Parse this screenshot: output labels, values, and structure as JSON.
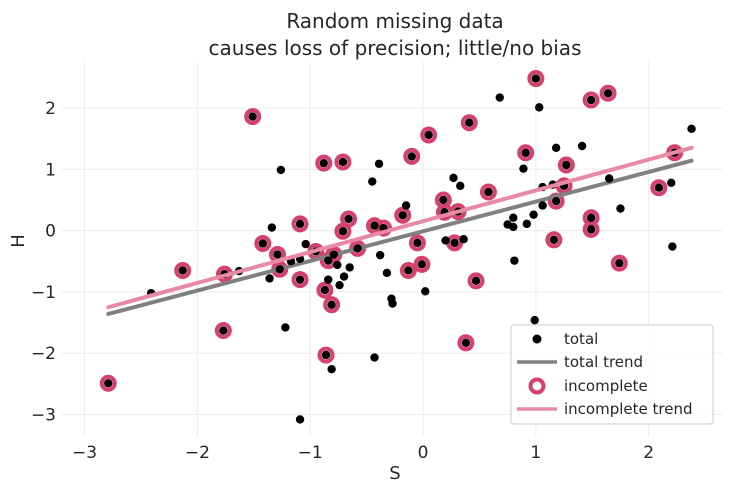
{
  "chart_data": {
    "type": "scatter",
    "title_line1": "Random missing data",
    "title_line2": "causes loss of precision; little/no bias",
    "xlabel": "S",
    "ylabel": "H",
    "xlim": [
      -3.2,
      2.65
    ],
    "ylim": [
      -3.35,
      2.75
    ],
    "xticks": [
      -3,
      -2,
      -1,
      0,
      1,
      2
    ],
    "yticks": [
      -3,
      -2,
      -1,
      0,
      1,
      2
    ],
    "xtick_labels": [
      "−3",
      "−2",
      "−1",
      "0",
      "1",
      "2"
    ],
    "ytick_labels": [
      "−3",
      "−2",
      "−1",
      "0",
      "1",
      "2"
    ],
    "grid": true,
    "legend_position": "bottom-right",
    "colors": {
      "total": "#000000",
      "total_trend": "#808080",
      "incomplete": "#d6406c",
      "incomplete_trend": "#e88aa5"
    },
    "series": [
      {
        "name": "total",
        "kind": "points",
        "points": [
          [
            -2.79,
            -2.49
          ],
          [
            -2.41,
            -1.02
          ],
          [
            -2.13,
            -0.65
          ],
          [
            -1.76,
            -0.71
          ],
          [
            -1.63,
            -0.66
          ],
          [
            -1.77,
            -1.63
          ],
          [
            -1.51,
            1.86
          ],
          [
            -1.42,
            -0.21
          ],
          [
            -1.36,
            -0.78
          ],
          [
            -1.34,
            0.05
          ],
          [
            -1.29,
            -0.39
          ],
          [
            -1.27,
            -0.63
          ],
          [
            -1.26,
            0.99
          ],
          [
            -1.22,
            -1.58
          ],
          [
            -1.17,
            -0.5
          ],
          [
            -1.09,
            -0.46
          ],
          [
            -1.09,
            0.11
          ],
          [
            -1.09,
            -0.8
          ],
          [
            -1.09,
            -3.08
          ],
          [
            -1.04,
            -0.22
          ],
          [
            -0.95,
            -0.34
          ],
          [
            -0.88,
            1.1
          ],
          [
            -0.87,
            -0.97
          ],
          [
            -0.86,
            -2.03
          ],
          [
            -0.84,
            -0.49
          ],
          [
            -0.84,
            -0.8
          ],
          [
            -0.81,
            -1.21
          ],
          [
            -0.81,
            -2.26
          ],
          [
            -0.79,
            -0.39
          ],
          [
            -0.76,
            -0.56
          ],
          [
            -0.74,
            -0.89
          ],
          [
            -0.71,
            1.12
          ],
          [
            -0.71,
            -0.01
          ],
          [
            -0.7,
            -0.75
          ],
          [
            -0.66,
            0.19
          ],
          [
            -0.65,
            -0.6
          ],
          [
            -0.58,
            -0.29
          ],
          [
            -0.45,
            0.8
          ],
          [
            -0.43,
            0.08
          ],
          [
            -0.43,
            -2.07
          ],
          [
            -0.39,
            1.09
          ],
          [
            -0.38,
            -0.4
          ],
          [
            -0.35,
            0.04
          ],
          [
            -0.32,
            -0.69
          ],
          [
            -0.28,
            -1.11
          ],
          [
            -0.27,
            -1.19
          ],
          [
            -0.18,
            0.25
          ],
          [
            -0.15,
            0.41
          ],
          [
            -0.13,
            -0.65
          ],
          [
            -0.1,
            1.21
          ],
          [
            -0.05,
            -0.2
          ],
          [
            -0.01,
            -0.55
          ],
          [
            0.02,
            -0.99
          ],
          [
            0.05,
            1.56
          ],
          [
            0.18,
            0.5
          ],
          [
            0.19,
            0.3
          ],
          [
            0.2,
            -0.16
          ],
          [
            0.27,
            0.86
          ],
          [
            0.28,
            -0.2
          ],
          [
            0.31,
            0.31
          ],
          [
            0.33,
            0.73
          ],
          [
            0.36,
            -0.14
          ],
          [
            0.38,
            -1.83
          ],
          [
            0.41,
            1.76
          ],
          [
            0.47,
            -0.82
          ],
          [
            0.58,
            0.63
          ],
          [
            0.68,
            2.17
          ],
          [
            0.75,
            0.1
          ],
          [
            0.8,
            0.06
          ],
          [
            0.8,
            0.21
          ],
          [
            0.81,
            -0.49
          ],
          [
            0.89,
            1.01
          ],
          [
            0.91,
            1.27
          ],
          [
            0.92,
            0.11
          ],
          [
            0.98,
            0.26
          ],
          [
            0.99,
            -1.46
          ],
          [
            1.0,
            2.48
          ],
          [
            1.03,
            2.01
          ],
          [
            1.06,
            0.71
          ],
          [
            1.06,
            0.41
          ],
          [
            1.15,
            0.75
          ],
          [
            1.16,
            -0.15
          ],
          [
            1.18,
            1.35
          ],
          [
            1.18,
            0.48
          ],
          [
            1.25,
            0.73
          ],
          [
            1.27,
            1.07
          ],
          [
            1.41,
            1.38
          ],
          [
            1.49,
            2.13
          ],
          [
            1.49,
            0.21
          ],
          [
            1.49,
            0.02
          ],
          [
            1.64,
            2.24
          ],
          [
            1.65,
            0.85
          ],
          [
            1.74,
            -0.53
          ],
          [
            1.75,
            0.36
          ],
          [
            2.09,
            0.7
          ],
          [
            2.2,
            0.78
          ],
          [
            2.21,
            -0.26
          ],
          [
            2.23,
            1.27
          ],
          [
            2.38,
            1.66
          ]
        ]
      },
      {
        "name": "total trend",
        "kind": "line",
        "x": [
          -2.79,
          2.38
        ],
        "y": [
          -1.36,
          1.14
        ]
      },
      {
        "name": "incomplete",
        "kind": "rings",
        "points": [
          [
            -2.79,
            -2.49
          ],
          [
            -2.13,
            -0.65
          ],
          [
            -1.76,
            -0.71
          ],
          [
            -1.77,
            -1.63
          ],
          [
            -1.51,
            1.86
          ],
          [
            -1.42,
            -0.21
          ],
          [
            -1.29,
            -0.39
          ],
          [
            -1.27,
            -0.63
          ],
          [
            -1.09,
            0.11
          ],
          [
            -1.09,
            -0.8
          ],
          [
            -0.95,
            -0.34
          ],
          [
            -0.88,
            1.1
          ],
          [
            -0.87,
            -0.97
          ],
          [
            -0.86,
            -2.03
          ],
          [
            -0.84,
            -0.49
          ],
          [
            -0.81,
            -1.21
          ],
          [
            -0.79,
            -0.39
          ],
          [
            -0.71,
            1.12
          ],
          [
            -0.71,
            -0.01
          ],
          [
            -0.66,
            0.19
          ],
          [
            -0.58,
            -0.29
          ],
          [
            -0.43,
            0.08
          ],
          [
            -0.35,
            0.04
          ],
          [
            -0.18,
            0.25
          ],
          [
            -0.13,
            -0.65
          ],
          [
            -0.1,
            1.21
          ],
          [
            -0.05,
            -0.2
          ],
          [
            -0.01,
            -0.55
          ],
          [
            0.05,
            1.56
          ],
          [
            0.18,
            0.5
          ],
          [
            0.19,
            0.3
          ],
          [
            0.28,
            -0.2
          ],
          [
            0.31,
            0.31
          ],
          [
            0.38,
            -1.83
          ],
          [
            0.41,
            1.76
          ],
          [
            0.47,
            -0.82
          ],
          [
            0.58,
            0.63
          ],
          [
            0.91,
            1.27
          ],
          [
            1.0,
            2.48
          ],
          [
            1.16,
            -0.15
          ],
          [
            1.18,
            0.48
          ],
          [
            1.25,
            0.73
          ],
          [
            1.27,
            1.07
          ],
          [
            1.49,
            2.13
          ],
          [
            1.49,
            0.21
          ],
          [
            1.49,
            0.02
          ],
          [
            1.64,
            2.24
          ],
          [
            1.74,
            -0.53
          ],
          [
            2.09,
            0.7
          ],
          [
            2.23,
            1.27
          ]
        ]
      },
      {
        "name": "incomplete trend",
        "kind": "line",
        "x": [
          -2.79,
          2.38
        ],
        "y": [
          -1.25,
          1.35
        ]
      }
    ],
    "legend": [
      {
        "label": "total",
        "kind": "dot"
      },
      {
        "label": "total trend",
        "kind": "line"
      },
      {
        "label": "incomplete",
        "kind": "ring"
      },
      {
        "label": "incomplete trend",
        "kind": "line"
      }
    ]
  }
}
